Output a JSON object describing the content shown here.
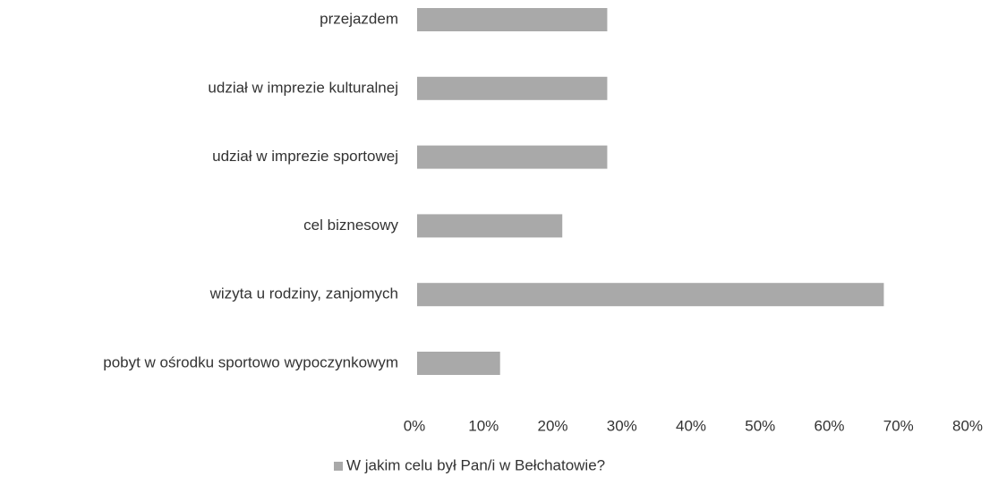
{
  "chart_data": {
    "type": "hbar",
    "categories": [
      "przejazdem",
      "udział w imprezie kulturalnej",
      "udział w imprezie sportowej",
      "cel biznesowy",
      "wizyta u rodziny, zanjomych",
      "pobyt w ośrodku sportowo wypoczynkowym"
    ],
    "series": [
      {
        "name": "W jakim celu był Pan/i w Bełchatowie?",
        "color": "#a9a9a9",
        "values": [
          27.5,
          27.5,
          27.5,
          21,
          67.5,
          12
        ]
      }
    ],
    "xlim": [
      0,
      80
    ],
    "xticks": [
      {
        "value": 0,
        "label": "0%"
      },
      {
        "value": 10,
        "label": "10%"
      },
      {
        "value": 20,
        "label": "20%"
      },
      {
        "value": 30,
        "label": "30%"
      },
      {
        "value": 40,
        "label": "40%"
      },
      {
        "value": 50,
        "label": "50%"
      },
      {
        "value": 60,
        "label": "60%"
      },
      {
        "value": 70,
        "label": "70%"
      },
      {
        "value": 80,
        "label": "80%"
      }
    ],
    "grid": false,
    "legend": "bottom"
  }
}
